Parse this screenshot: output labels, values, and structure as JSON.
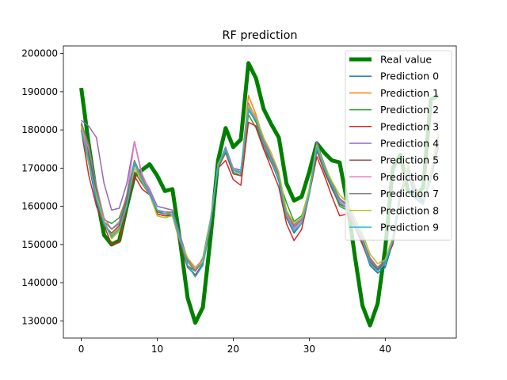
{
  "chart_data": {
    "type": "line",
    "title": "RF prediction",
    "xlabel": "",
    "ylabel": "",
    "xlim": [
      -2.35,
      49.35
    ],
    "ylim": [
      125500,
      202000
    ],
    "xticks": [
      0,
      10,
      20,
      30,
      40
    ],
    "yticks": [
      130000,
      140000,
      150000,
      160000,
      170000,
      180000,
      190000,
      200000
    ],
    "grid": false,
    "legend_position": "top-right",
    "x": [
      0,
      1,
      2,
      3,
      4,
      5,
      6,
      7,
      8,
      9,
      10,
      11,
      12,
      13,
      14,
      15,
      16,
      17,
      18,
      19,
      20,
      21,
      22,
      23,
      24,
      25,
      26,
      27,
      28,
      29,
      30,
      31,
      32,
      33,
      34,
      35,
      36,
      37,
      38,
      39,
      40,
      41,
      42,
      43,
      44,
      45,
      46,
      47
    ],
    "series": [
      {
        "name": "Real value",
        "color": "#008000",
        "width": 5,
        "values": [
          191000,
          176000,
          163000,
          152500,
          150000,
          151000,
          160000,
          168000,
          169500,
          171000,
          168000,
          164000,
          164500,
          151000,
          136000,
          129500,
          133500,
          151500,
          172000,
          180500,
          175500,
          177500,
          197500,
          193500,
          185500,
          181500,
          178000,
          166000,
          161500,
          162500,
          169000,
          176500,
          174000,
          172000,
          171500,
          161000,
          147000,
          134000,
          128800,
          134500,
          149000,
          170000,
          173500,
          164000,
          162500,
          165000,
          188000,
          189000
        ]
      },
      {
        "name": "Prediction 0",
        "color": "#1f77b4",
        "width": 1.5,
        "values": [
          180000,
          171000,
          161000,
          156000,
          152000,
          154000,
          160000,
          171000,
          167000,
          163000,
          159000,
          158000,
          158500,
          151500,
          144500,
          142000,
          145000,
          156000,
          170500,
          174500,
          169500,
          169000,
          185000,
          183000,
          177000,
          172000,
          166500,
          157000,
          153000,
          155500,
          163000,
          176500,
          170000,
          165500,
          161000,
          159500,
          154500,
          150500,
          144500,
          142500,
          144000,
          150500,
          163000,
          168500,
          162000,
          160500,
          167500,
          176500
        ]
      },
      {
        "name": "Prediction 1",
        "color": "#ff7f0e",
        "width": 1.5,
        "values": [
          180500,
          172000,
          162500,
          155000,
          152500,
          154500,
          162000,
          171500,
          166000,
          163500,
          158500,
          158000,
          158500,
          151500,
          145500,
          143500,
          145500,
          155500,
          171000,
          175000,
          170000,
          169000,
          189000,
          184000,
          177500,
          173000,
          168000,
          158500,
          154500,
          156500,
          163500,
          175500,
          169500,
          165000,
          161000,
          159500,
          155000,
          151500,
          146500,
          144000,
          145500,
          151500,
          163500,
          169500,
          164000,
          161000,
          168500,
          177500
        ]
      },
      {
        "name": "Prediction 2",
        "color": "#2ca02c",
        "width": 1.5,
        "values": [
          180000,
          172500,
          163500,
          156500,
          155500,
          157000,
          162500,
          172000,
          167000,
          163500,
          158000,
          157500,
          158000,
          152500,
          144500,
          143000,
          146500,
          156500,
          170000,
          174500,
          169000,
          168000,
          184000,
          180500,
          175000,
          171500,
          167000,
          161000,
          156000,
          157500,
          164000,
          176000,
          169500,
          165000,
          160000,
          159000,
          156000,
          151500,
          145000,
          143500,
          145500,
          151500,
          163000,
          169500,
          163000,
          161500,
          167000,
          178000
        ]
      },
      {
        "name": "Prediction 3",
        "color": "#d62728",
        "width": 1.5,
        "values": [
          180000,
          168000,
          160000,
          155000,
          150000,
          150500,
          160000,
          168000,
          164500,
          163000,
          158000,
          157500,
          157500,
          150500,
          144000,
          142000,
          144500,
          154500,
          170000,
          172000,
          167000,
          165500,
          182000,
          181000,
          175000,
          170000,
          165000,
          155500,
          151000,
          154000,
          163000,
          173000,
          168000,
          162500,
          157500,
          158000,
          154500,
          150000,
          145000,
          143000,
          145500,
          150000,
          162500,
          168500,
          163000,
          161500,
          167000,
          175500
        ]
      },
      {
        "name": "Prediction 4",
        "color": "#9467bd",
        "width": 1.5,
        "values": [
          182500,
          181000,
          178000,
          166000,
          159000,
          159500,
          166000,
          177000,
          168000,
          164500,
          160000,
          159500,
          159000,
          152500,
          146000,
          144000,
          146000,
          155500,
          171000,
          175500,
          170000,
          169500,
          187000,
          183000,
          178000,
          173000,
          168500,
          158000,
          154500,
          156500,
          164500,
          177000,
          170500,
          166000,
          162000,
          160000,
          155000,
          151500,
          146500,
          144000,
          146000,
          152000,
          164000,
          170500,
          164500,
          162000,
          169000,
          179000
        ]
      },
      {
        "name": "Prediction 5",
        "color": "#8c564b",
        "width": 1.5,
        "values": [
          181500,
          174000,
          163500,
          155000,
          153000,
          155000,
          162000,
          169000,
          166000,
          163000,
          158500,
          158000,
          158000,
          151500,
          145500,
          143500,
          145500,
          155500,
          170000,
          174000,
          168500,
          168000,
          185500,
          182000,
          176000,
          171500,
          167000,
          157000,
          153500,
          155500,
          163500,
          174500,
          169000,
          164500,
          160500,
          159500,
          155000,
          151000,
          145500,
          143500,
          145000,
          151000,
          163000,
          169000,
          163500,
          161000,
          167500,
          177000
        ]
      },
      {
        "name": "Prediction 6",
        "color": "#e377c2",
        "width": 1.5,
        "values": [
          181000,
          175000,
          165500,
          157000,
          154000,
          156000,
          163000,
          177000,
          168500,
          164000,
          159000,
          158500,
          158500,
          152000,
          145500,
          143500,
          146000,
          156000,
          170500,
          175000,
          170000,
          169000,
          186000,
          183000,
          177500,
          172500,
          168000,
          158000,
          154000,
          156000,
          164000,
          176000,
          170000,
          165500,
          161500,
          160000,
          155500,
          151500,
          146000,
          144000,
          145500,
          151500,
          163500,
          169500,
          164000,
          161500,
          168000,
          178000
        ]
      },
      {
        "name": "Prediction 7",
        "color": "#7f7f7f",
        "width": 1.5,
        "values": [
          182000,
          176000,
          165000,
          156000,
          154000,
          155500,
          163000,
          172000,
          167500,
          163500,
          159000,
          158500,
          158500,
          152000,
          145500,
          143000,
          145500,
          156000,
          170500,
          174500,
          169500,
          168500,
          185000,
          182500,
          177000,
          172500,
          168000,
          159000,
          155000,
          157000,
          164500,
          176500,
          171000,
          166000,
          162000,
          160500,
          156000,
          152000,
          146000,
          144000,
          145500,
          151500,
          163500,
          170000,
          164000,
          161500,
          168000,
          178500
        ]
      },
      {
        "name": "Prediction 8",
        "color": "#bcbd22",
        "width": 1.5,
        "values": [
          181000,
          171000,
          163000,
          156000,
          151500,
          153500,
          160500,
          170000,
          166500,
          163000,
          157500,
          157000,
          157500,
          151000,
          146500,
          144000,
          145500,
          156000,
          171000,
          175000,
          169500,
          169000,
          186500,
          183500,
          178000,
          174000,
          169000,
          159000,
          155500,
          157000,
          164500,
          176000,
          170500,
          166500,
          163000,
          161000,
          157000,
          153000,
          147500,
          145000,
          146000,
          152000,
          164000,
          171000,
          165000,
          162000,
          169000,
          179000
        ]
      },
      {
        "name": "Prediction 9",
        "color": "#17becf",
        "width": 1.5,
        "values": [
          180000,
          172000,
          162000,
          155500,
          152000,
          154000,
          160000,
          171500,
          167000,
          163000,
          159000,
          158000,
          158000,
          151500,
          144500,
          141500,
          144500,
          155500,
          170500,
          175000,
          169500,
          169000,
          185500,
          182500,
          176500,
          172000,
          167000,
          157500,
          153500,
          155500,
          163000,
          175500,
          170000,
          165500,
          161000,
          159500,
          155000,
          151000,
          145000,
          143000,
          145000,
          151000,
          163000,
          169000,
          163000,
          160500,
          167500,
          177000
        ]
      }
    ]
  }
}
